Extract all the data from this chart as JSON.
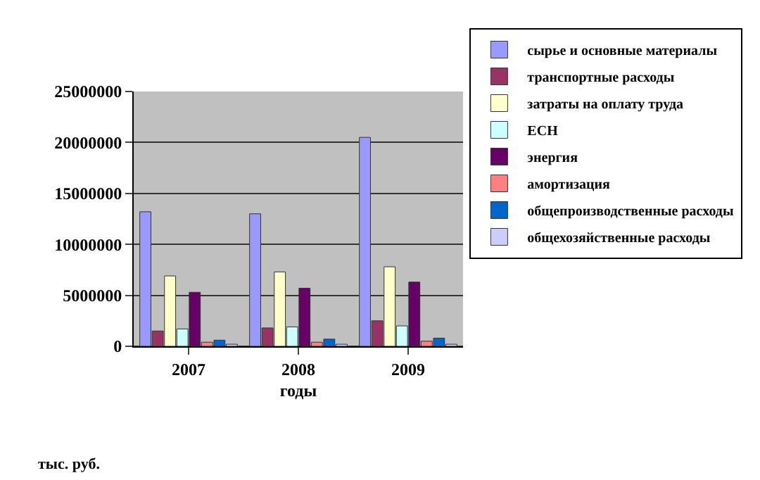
{
  "chart_data": {
    "type": "bar",
    "categories": [
      "2007",
      "2008",
      "2009"
    ],
    "xlabel": "годы",
    "ylabel": "тыс. руб.",
    "series": [
      {
        "name": "сырье и основные материалы",
        "color": "#9999ff",
        "values": [
          13200000,
          13000000,
          20500000
        ]
      },
      {
        "name": "транспортные расходы",
        "color": "#993366",
        "values": [
          1500000,
          1800000,
          2500000
        ]
      },
      {
        "name": "затраты на оплату труда",
        "color": "#ffffcc",
        "values": [
          6900000,
          7300000,
          7800000
        ]
      },
      {
        "name": "ЕСН",
        "color": "#ccffff",
        "values": [
          1700000,
          1900000,
          2000000
        ]
      },
      {
        "name": "энергия",
        "color": "#660066",
        "values": [
          5300000,
          5700000,
          6300000
        ]
      },
      {
        "name": "амортизация",
        "color": "#ff8080",
        "values": [
          400000,
          400000,
          500000
        ]
      },
      {
        "name": "общепроизводственные расходы",
        "color": "#0066cc",
        "values": [
          600000,
          700000,
          800000
        ]
      },
      {
        "name": "общехозяйственные расходы",
        "color": "#ccccff",
        "values": [
          200000,
          200000,
          200000
        ]
      }
    ],
    "ylim": [
      0,
      25000000
    ],
    "yticks": [
      0,
      5000000,
      10000000,
      15000000,
      20000000,
      25000000
    ],
    "grid": "y",
    "legend": "right"
  }
}
